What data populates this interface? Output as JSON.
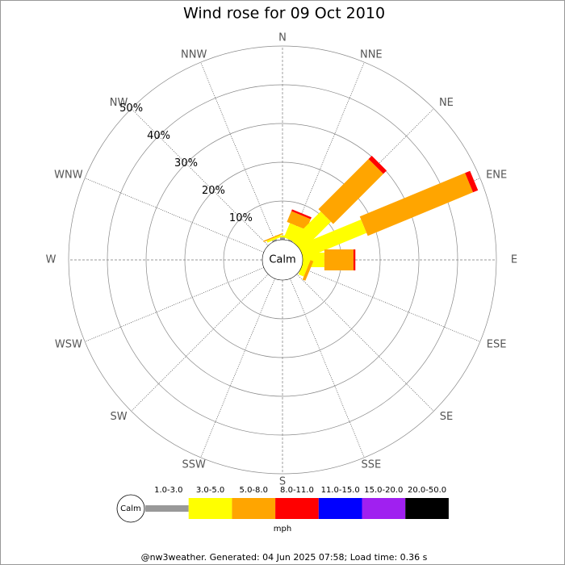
{
  "chart_data": {
    "type": "windrose",
    "title": "Wind rose for 09 Oct 2010",
    "directions": [
      "N",
      "NNE",
      "NE",
      "ENE",
      "E",
      "ESE",
      "SE",
      "SSE",
      "S",
      "SSW",
      "SW",
      "WSW",
      "W",
      "WNW",
      "NW",
      "NNW"
    ],
    "center_label": "Calm",
    "unit": "mph",
    "footer": "@nw3weather. Generated: 04 Jun 2025 07:58; Load time: 0.36 s",
    "rlim": [
      0,
      50
    ],
    "rticks": [
      {
        "value": 10,
        "label": "10%"
      },
      {
        "value": 20,
        "label": "20%"
      },
      {
        "value": 30,
        "label": "30%"
      },
      {
        "value": 40,
        "label": "40%"
      },
      {
        "value": 50,
        "label": "50%"
      }
    ],
    "series": [
      {
        "name": "1.0-3.0",
        "color": "#999999",
        "values": [
          0.6,
          0.3,
          0,
          0,
          0,
          0,
          0,
          0,
          0,
          0,
          0,
          0,
          0,
          0,
          0,
          0.4
        ]
      },
      {
        "name": "3.0-5.0",
        "color": "#ffff00",
        "values": [
          0.5,
          4,
          10.6,
          17.5,
          5.6,
          1.5,
          0,
          0,
          0,
          0,
          0,
          0,
          0,
          0,
          0,
          0.5
        ]
      },
      {
        "name": "5.0-8.0",
        "color": "#ffa500",
        "values": [
          0,
          3,
          18.3,
          29.4,
          7.5,
          0.8,
          0,
          0,
          0,
          0,
          0,
          0,
          0,
          0,
          0,
          0.3
        ]
      },
      {
        "name": "8.0-11.0",
        "color": "#ff0000",
        "values": [
          0,
          0.5,
          1.2,
          1.4,
          0.5,
          0,
          0,
          0,
          0,
          0,
          0,
          0,
          0,
          0,
          0,
          0
        ]
      },
      {
        "name": "11.0-15.0",
        "color": "#0000ff",
        "values": [
          0,
          0,
          0,
          0,
          0,
          0,
          0,
          0,
          0,
          0,
          0,
          0,
          0,
          0,
          0,
          0
        ]
      },
      {
        "name": "15.0-20.0",
        "color": "#a020f0",
        "values": [
          0,
          0,
          0,
          0,
          0,
          0,
          0,
          0,
          0,
          0,
          0,
          0,
          0,
          0,
          0,
          0
        ]
      },
      {
        "name": "20.0-50.0",
        "color": "#000000",
        "values": [
          0,
          0,
          0,
          0,
          0,
          0,
          0,
          0,
          0,
          0,
          0,
          0,
          0,
          0,
          0,
          0
        ]
      }
    ]
  }
}
